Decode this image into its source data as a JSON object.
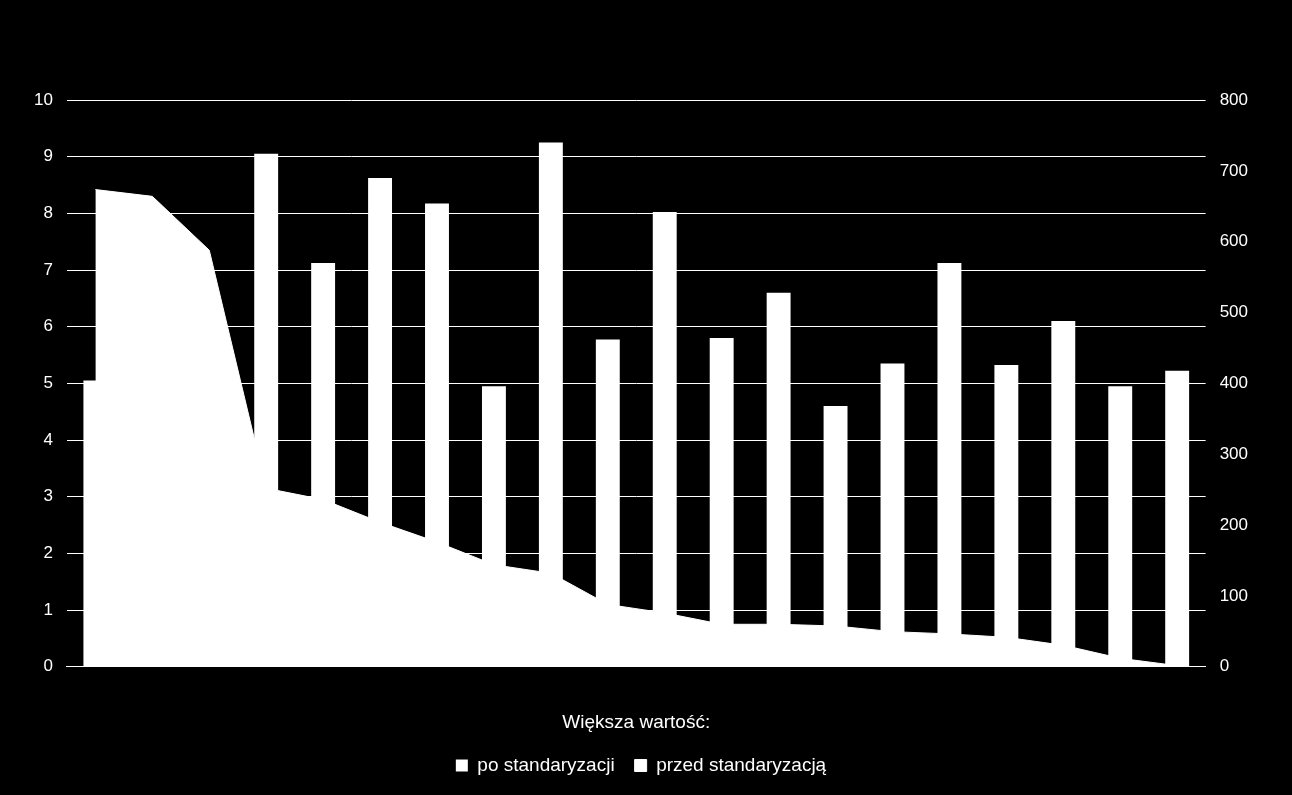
{
  "chart_data": {
    "type": "bar",
    "x_label": "Większa wartość:",
    "categories": [
      null,
      null,
      null,
      null,
      null,
      null,
      null,
      null,
      null,
      null,
      null,
      null,
      null,
      null,
      null,
      null,
      null,
      null,
      null,
      null
    ],
    "series": [
      {
        "name": "przed standaryzacją",
        "type": "area",
        "color": "#ffffff",
        "values": [
          8.42,
          8.3,
          7.35,
          3.15,
          2.95,
          2.55,
          2.2,
          1.8,
          1.65,
          1.1,
          0.95,
          0.75,
          0.75,
          0.72,
          0.62,
          0.58,
          0.52,
          0.38,
          0.15,
          0.02
        ]
      },
      {
        "name": "po standaryzacji",
        "type": "bar",
        "color": "#ffffff",
        "axis": "y2",
        "values": [
          404,
          null,
          null,
          724,
          570,
          690,
          654,
          396,
          740,
          462,
          642,
          464,
          528,
          368,
          428,
          570,
          426,
          488,
          396,
          418
        ]
      }
    ],
    "ylim": [
      0,
      10
    ],
    "yticks": [
      0,
      1,
      2,
      3,
      4,
      5,
      6,
      7,
      8,
      9,
      10
    ],
    "y2lim": [
      0,
      800
    ],
    "y2ticks": [
      0,
      100,
      200,
      300,
      400,
      500,
      600,
      700,
      800
    ],
    "grid": true,
    "legend": "bottom"
  }
}
